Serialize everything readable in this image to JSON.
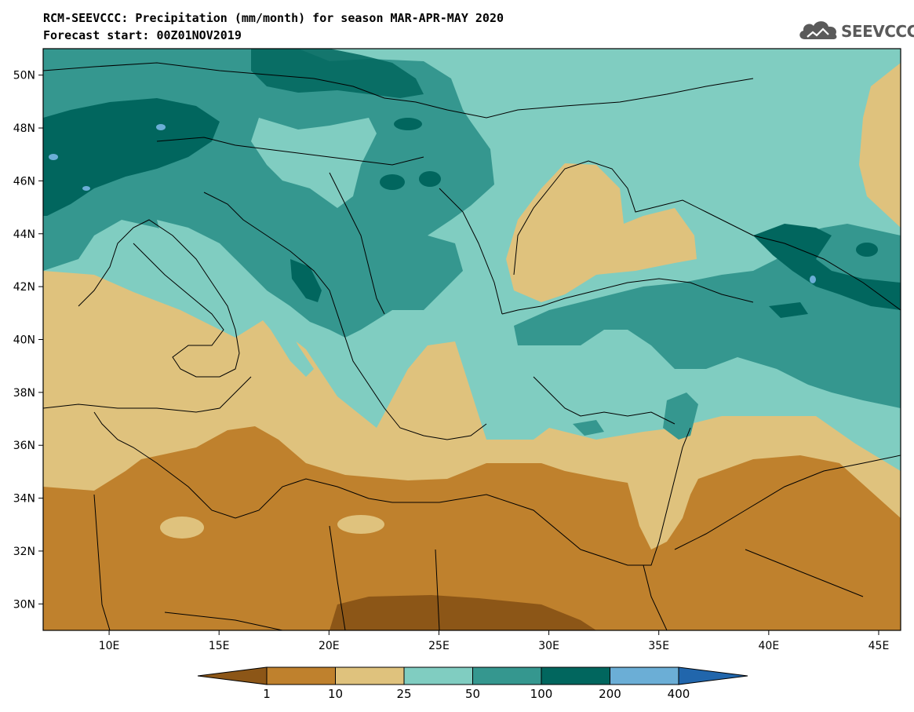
{
  "header": {
    "title_line_1": "RCM-SEEVCCC: Precipitation (mm/month) for season MAR-APR-MAY 2020",
    "title_line_2": "Forecast start: 00Z01NOV2019",
    "logo_text": "SEEVCCC",
    "logo_icon": "cloud-icon"
  },
  "map": {
    "lon_ticks": [
      "10E",
      "15E",
      "20E",
      "25E",
      "30E",
      "35E",
      "40E",
      "45E"
    ],
    "lat_ticks": [
      "50N",
      "48N",
      "46N",
      "44N",
      "42N",
      "40N",
      "38N",
      "36N",
      "34N",
      "32N",
      "30N"
    ],
    "lon_range": [
      7,
      46
    ],
    "lat_range": [
      29,
      51
    ]
  },
  "colorbar": {
    "levels": [
      "1",
      "10",
      "25",
      "50",
      "100",
      "200",
      "400"
    ],
    "colors": {
      "lt_1": "#8c5617",
      "1_10": "#bf812d",
      "10_25": "#dfc27d",
      "25_50": "#80cdc1",
      "50_100": "#35978f",
      "100_200": "#01665e",
      "200_400": "#6baed6",
      "gt_400": "#2166ac"
    }
  }
}
